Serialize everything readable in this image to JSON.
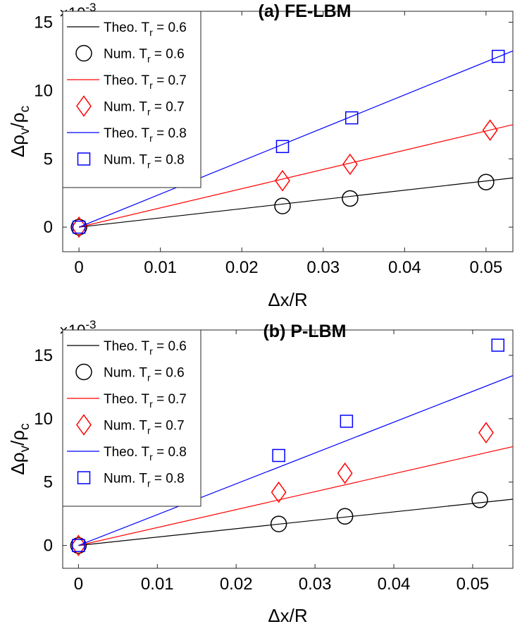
{
  "colors": {
    "theo_06": "#000000",
    "theo_07": "#ff0000",
    "theo_08": "#0000ff"
  },
  "chart_data": [
    {
      "type": "scatter",
      "title": "(a) FE-LBM",
      "xlabel": "Δx/R",
      "ylabel": "Δρ_v/ρ_c",
      "ylabel_parts": {
        "delta_rho": "Δρ",
        "sub_v": "v",
        "slash_rho": "/ρ",
        "sub_c": "c"
      },
      "exponent_label": "×10",
      "exponent_sup": "-3",
      "xlim": [
        -0.002,
        0.0533
      ],
      "ylim": [
        -1.8,
        15.8
      ],
      "xticks": [
        0,
        0.01,
        0.02,
        0.03,
        0.04,
        0.05
      ],
      "xtick_labels": [
        "0",
        "0.01",
        "0.02",
        "0.03",
        "0.04",
        "0.05"
      ],
      "yticks": [
        0,
        5,
        10,
        15
      ],
      "ytick_labels": [
        "0",
        "5",
        "10",
        "15"
      ],
      "legend_position": "top-left",
      "series": [
        {
          "name": "Theo. Tr = 0.6",
          "label_main": "Theo. T",
          "label_sub": "r",
          "label_rest": " = 0.6",
          "kind": "line",
          "color": "#000000",
          "x": [
            0,
            0.0533
          ],
          "y": [
            0,
            3.6
          ]
        },
        {
          "name": "Num. Tr = 0.6",
          "label_main": "Num. T",
          "label_sub": "r",
          "label_rest": " = 0.6",
          "kind": "marker",
          "marker": "circle",
          "color": "#000000",
          "x": [
            0,
            0.025,
            0.0333,
            0.05
          ],
          "y": [
            0,
            1.55,
            2.1,
            3.3
          ]
        },
        {
          "name": "Theo. Tr = 0.7",
          "label_main": "Theo. T",
          "label_sub": "r",
          "label_rest": " = 0.7",
          "kind": "line",
          "color": "#ff0000",
          "x": [
            0,
            0.0533
          ],
          "y": [
            0,
            7.5
          ]
        },
        {
          "name": "Num. Tr = 0.7",
          "label_main": "Num. T",
          "label_sub": "r",
          "label_rest": " = 0.7",
          "kind": "marker",
          "marker": "diamond",
          "color": "#ff0000",
          "x": [
            0,
            0.025,
            0.0333,
            0.0505
          ],
          "y": [
            0,
            3.4,
            4.6,
            7.1
          ]
        },
        {
          "name": "Theo. Tr = 0.8",
          "label_main": "Theo. T",
          "label_sub": "r",
          "label_rest": " = 0.8",
          "kind": "line",
          "color": "#0000ff",
          "x": [
            0,
            0.0533
          ],
          "y": [
            0,
            12.9
          ]
        },
        {
          "name": "Num. Tr = 0.8",
          "label_main": "Num. T",
          "label_sub": "r",
          "label_rest": " = 0.8",
          "kind": "marker",
          "marker": "square",
          "color": "#0000ff",
          "x": [
            0,
            0.025,
            0.0335,
            0.0515
          ],
          "y": [
            0,
            5.9,
            8.0,
            12.5
          ]
        }
      ]
    },
    {
      "type": "scatter",
      "title": "(b) P-LBM",
      "xlabel": "Δx/R",
      "ylabel": "Δρ_v/ρ_c",
      "ylabel_parts": {
        "delta_rho": "Δρ",
        "sub_v": "v",
        "slash_rho": "/ρ",
        "sub_c": "c"
      },
      "exponent_label": "×10",
      "exponent_sup": "-3",
      "xlim": [
        -0.002,
        0.0551
      ],
      "ylim": [
        -1.8,
        17.0
      ],
      "xticks": [
        0,
        0.01,
        0.02,
        0.03,
        0.04,
        0.05
      ],
      "xtick_labels": [
        "0",
        "0.01",
        "0.02",
        "0.03",
        "0.04",
        "0.05"
      ],
      "yticks": [
        0,
        5,
        10,
        15
      ],
      "ytick_labels": [
        "0",
        "5",
        "10",
        "15"
      ],
      "legend_position": "top-left",
      "series": [
        {
          "name": "Theo. Tr = 0.6",
          "label_main": "Theo. T",
          "label_sub": "r",
          "label_rest": " = 0.6",
          "kind": "line",
          "color": "#000000",
          "x": [
            0,
            0.0551
          ],
          "y": [
            0,
            3.65
          ]
        },
        {
          "name": "Num. Tr = 0.6",
          "label_main": "Num. T",
          "label_sub": "r",
          "label_rest": " = 0.6",
          "kind": "marker",
          "marker": "circle",
          "color": "#000000",
          "x": [
            0,
            0.0254,
            0.0338,
            0.0509
          ],
          "y": [
            0,
            1.7,
            2.3,
            3.6
          ]
        },
        {
          "name": "Theo. Tr = 0.7",
          "label_main": "Theo. T",
          "label_sub": "r",
          "label_rest": " = 0.7",
          "kind": "line",
          "color": "#ff0000",
          "x": [
            0,
            0.0551
          ],
          "y": [
            0,
            7.8
          ]
        },
        {
          "name": "Num. Tr = 0.7",
          "label_main": "Num. T",
          "label_sub": "r",
          "label_rest": " = 0.7",
          "kind": "marker",
          "marker": "diamond",
          "color": "#ff0000",
          "x": [
            0,
            0.0254,
            0.0338,
            0.0517
          ],
          "y": [
            0,
            4.2,
            5.7,
            8.9
          ]
        },
        {
          "name": "Theo. Tr = 0.8",
          "label_main": "Theo. T",
          "label_sub": "r",
          "label_rest": " = 0.8",
          "kind": "line",
          "color": "#0000ff",
          "x": [
            0,
            0.0551
          ],
          "y": [
            0,
            13.4
          ]
        },
        {
          "name": "Num. Tr = 0.8",
          "label_main": "Num. T",
          "label_sub": "r",
          "label_rest": " = 0.8",
          "kind": "marker",
          "marker": "square",
          "color": "#0000ff",
          "x": [
            0,
            0.0254,
            0.034,
            0.0532
          ],
          "y": [
            0,
            7.1,
            9.8,
            15.8
          ]
        }
      ]
    }
  ]
}
